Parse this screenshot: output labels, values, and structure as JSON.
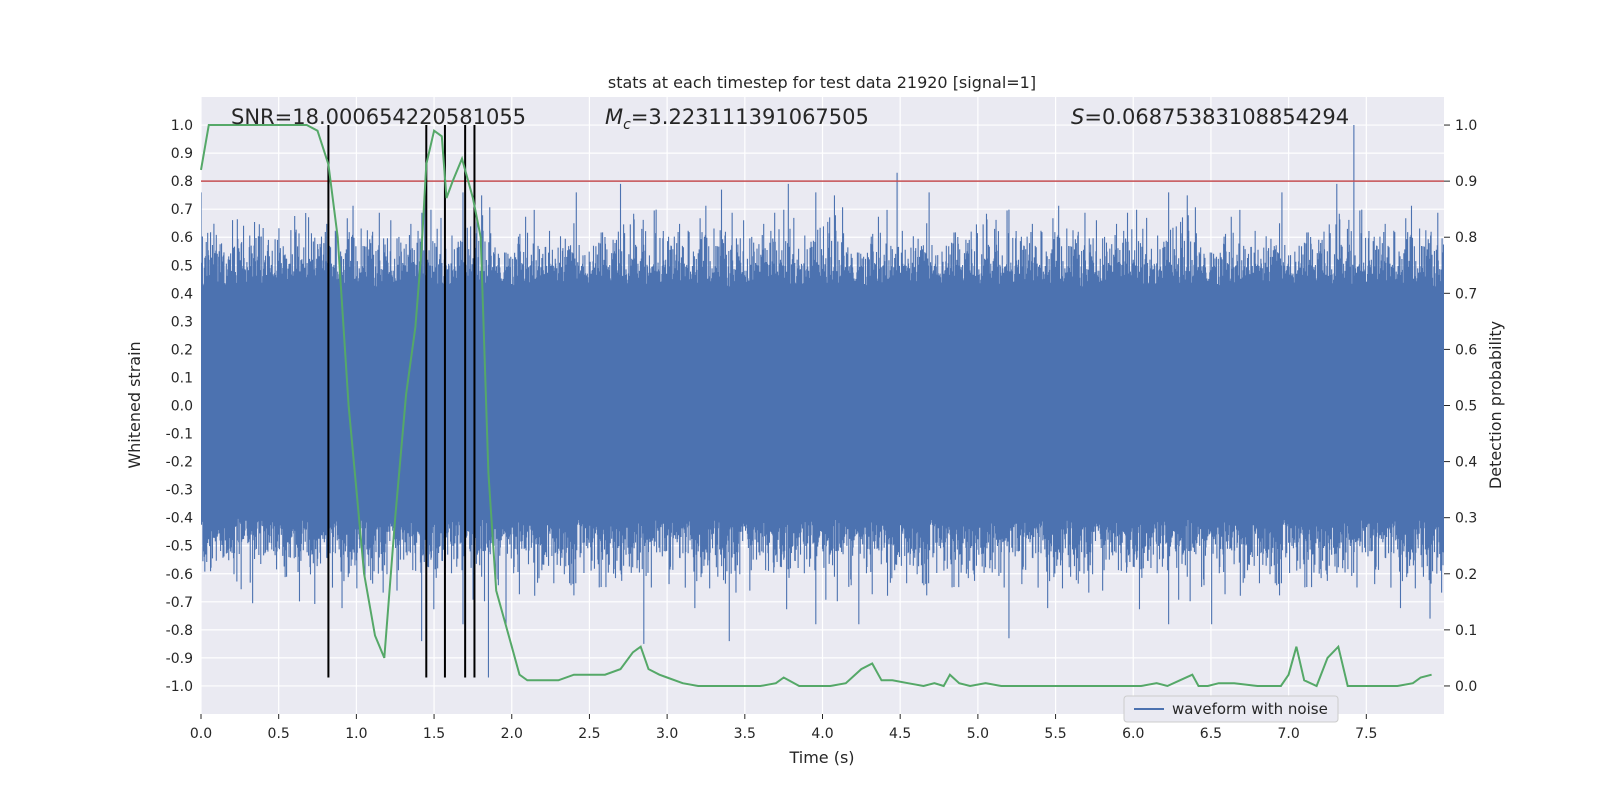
{
  "chart_data": {
    "type": "line",
    "title": "stats at each timestep for test data 21920 [signal=1]",
    "xlabel": "Time (s)",
    "ylabel_left": "Whitened strain",
    "ylabel_right": "Detection probability",
    "xlim": [
      0.0,
      8.0
    ],
    "ylim_left": [
      -1.1,
      1.1
    ],
    "ylim_right": [
      -0.05,
      1.05
    ],
    "x_ticks": [
      "0.0",
      "0.5",
      "1.0",
      "1.5",
      "2.0",
      "2.5",
      "3.0",
      "3.5",
      "4.0",
      "4.5",
      "5.0",
      "5.5",
      "6.0",
      "6.5",
      "7.0",
      "7.5"
    ],
    "y_ticks_left": [
      "1.0",
      "0.9",
      "0.8",
      "0.7",
      "0.6",
      "0.5",
      "0.4",
      "0.3",
      "0.2",
      "0.1",
      "0.0",
      "-0.1",
      "-0.2",
      "-0.3",
      "-0.4",
      "-0.5",
      "-0.6",
      "-0.7",
      "-0.8",
      "-0.9",
      "-1.0"
    ],
    "y_ticks_right": [
      "1.0",
      "0.9",
      "0.8",
      "0.7",
      "0.6",
      "0.5",
      "0.4",
      "0.3",
      "0.2",
      "0.1",
      "0.0"
    ],
    "grid": true,
    "legend_position": "lower-right",
    "annotations": {
      "snr": "SNR=18.000654220581055",
      "mc_symbol": "M",
      "mc_sub": "c",
      "mc_value": "=3.223111391067505",
      "s_symbol": "S",
      "s_value": "=0.06875383108854294"
    },
    "threshold": {
      "value_right_axis": 0.9,
      "color": "#c44e52"
    },
    "vertical_markers": {
      "x": [
        0.82,
        1.45,
        1.57,
        1.7,
        1.76
      ],
      "ymin": -0.97,
      "ymax": 1.0,
      "color": "#000000"
    },
    "series": [
      {
        "name": "waveform with noise",
        "color": "#4c72b0",
        "axis": "left",
        "kind": "noise-waveform",
        "dense_band": [
          -0.38,
          0.4
        ],
        "notable_peaks": [
          {
            "x": 7.42,
            "y": 1.0
          },
          {
            "x": 4.48,
            "y": 0.83
          },
          {
            "x": 2.7,
            "y": 0.79
          },
          {
            "x": 3.78,
            "y": 0.79
          },
          {
            "x": 7.31,
            "y": 0.79
          },
          {
            "x": 3.35,
            "y": 0.77
          },
          {
            "x": 1.44,
            "y": 0.78
          },
          {
            "x": 2.85,
            "y": -0.85
          },
          {
            "x": 3.4,
            "y": -0.84
          },
          {
            "x": 5.2,
            "y": -0.83
          },
          {
            "x": 1.85,
            "y": -0.97
          },
          {
            "x": 1.42,
            "y": -0.84
          },
          {
            "x": 7.91,
            "y": -0.76
          }
        ]
      },
      {
        "color": "#55a868",
        "axis": "right",
        "x": [
          0.0,
          0.05,
          0.12,
          0.2,
          0.3,
          0.4,
          0.5,
          0.6,
          0.68,
          0.75,
          0.82,
          0.88,
          0.95,
          1.0,
          1.05,
          1.12,
          1.18,
          1.25,
          1.32,
          1.38,
          1.42,
          1.45,
          1.5,
          1.55,
          1.58,
          1.62,
          1.68,
          1.75,
          1.8,
          1.85,
          1.9,
          1.95,
          2.0,
          2.05,
          2.1,
          2.2,
          2.3,
          2.4,
          2.5,
          2.6,
          2.7,
          2.78,
          2.83,
          2.88,
          2.95,
          3.0,
          3.1,
          3.2,
          3.4,
          3.6,
          3.7,
          3.75,
          3.85,
          3.95,
          4.05,
          4.15,
          4.25,
          4.32,
          4.38,
          4.45,
          4.55,
          4.65,
          4.72,
          4.78,
          4.82,
          4.88,
          4.95,
          5.05,
          5.15,
          5.3,
          5.5,
          5.7,
          5.9,
          6.05,
          6.15,
          6.22,
          6.3,
          6.38,
          6.42,
          6.48,
          6.55,
          6.65,
          6.8,
          6.95,
          7.0,
          7.05,
          7.1,
          7.18,
          7.25,
          7.32,
          7.38,
          7.45,
          7.55,
          7.7,
          7.8,
          7.85,
          7.92
        ],
        "y": [
          0.92,
          1.0,
          1.0,
          1.0,
          1.0,
          1.0,
          1.0,
          1.0,
          1.0,
          0.99,
          0.93,
          0.8,
          0.5,
          0.35,
          0.2,
          0.09,
          0.05,
          0.3,
          0.52,
          0.64,
          0.78,
          0.93,
          0.99,
          0.98,
          0.87,
          0.9,
          0.94,
          0.87,
          0.8,
          0.38,
          0.17,
          0.12,
          0.07,
          0.02,
          0.01,
          0.01,
          0.01,
          0.02,
          0.02,
          0.02,
          0.03,
          0.06,
          0.07,
          0.03,
          0.02,
          0.015,
          0.005,
          0.0,
          0.0,
          0.0,
          0.005,
          0.015,
          0.0,
          0.0,
          0.0,
          0.005,
          0.03,
          0.04,
          0.01,
          0.01,
          0.005,
          0.0,
          0.005,
          0.0,
          0.02,
          0.005,
          0.0,
          0.005,
          0.0,
          0.0,
          0.0,
          0.0,
          0.0,
          0.0,
          0.005,
          0.0,
          0.01,
          0.02,
          0.0,
          0.0,
          0.005,
          0.005,
          0.0,
          0.0,
          0.02,
          0.07,
          0.01,
          0.0,
          0.05,
          0.07,
          0.0,
          0.0,
          0.0,
          0.0,
          0.005,
          0.015,
          0.02
        ]
      }
    ]
  }
}
